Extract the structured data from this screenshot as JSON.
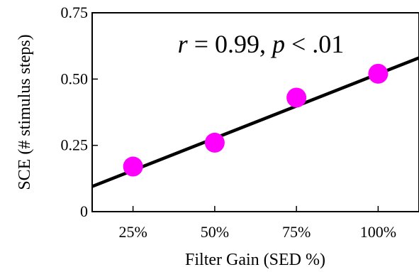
{
  "chart_data": {
    "type": "scatter",
    "title": "",
    "xlabel": "Filter Gain (SED %)",
    "ylabel": "SCE (# stimulus steps)",
    "x_categories": [
      "25%",
      "50%",
      "75%",
      "100%"
    ],
    "xlim": [
      12.5,
      112.5
    ],
    "ylim": [
      0,
      0.75
    ],
    "y_ticks": [
      0,
      0.25,
      0.5,
      0.75
    ],
    "y_tick_labels": [
      "0",
      "0.25",
      "0.50",
      "0.75"
    ],
    "grid": false,
    "legend": "none",
    "series": [
      {
        "x": [
          25,
          50,
          75,
          100
        ],
        "y": [
          0.17,
          0.26,
          0.43,
          0.52
        ],
        "color": "#ff00ff"
      }
    ],
    "fit_line": {
      "x": [
        12.5,
        112.5
      ],
      "y": [
        0.095,
        0.58
      ],
      "color": "#000000"
    },
    "annotation": {
      "r_label": "r",
      "r_value": " = 0.99, ",
      "p_label": "p",
      "p_value": " < .01"
    }
  }
}
